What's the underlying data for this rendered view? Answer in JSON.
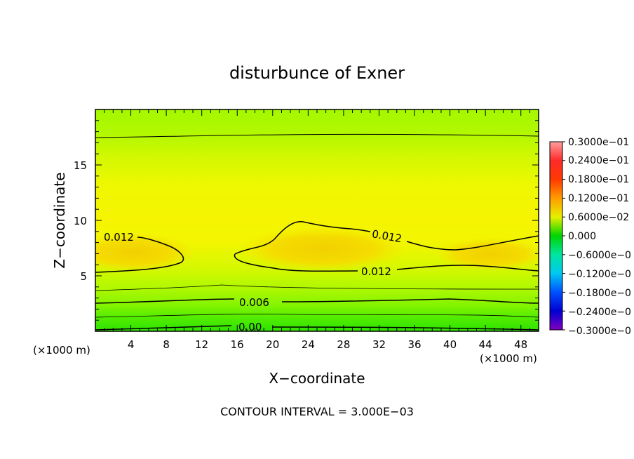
{
  "chart_data": {
    "type": "heatmap",
    "title": "disturbunce of Exner",
    "xlabel": "X−coordinate",
    "ylabel": "Z−coordinate",
    "x_unit_left": "(×1000 m)",
    "x_unit_right": "(×1000 m)",
    "footer": "CONTOUR INTERVAL = 3.000E−03",
    "xlim": [
      0,
      50
    ],
    "ylim": [
      0,
      20
    ],
    "x_ticks": [
      "4",
      "8",
      "12",
      "16",
      "20",
      "24",
      "28",
      "32",
      "36",
      "40",
      "44",
      "48"
    ],
    "y_ticks": [
      "5",
      "10",
      "15"
    ],
    "contour_labels": [
      "0.012",
      "0.012",
      "0.012",
      "0.006",
      "0.00"
    ],
    "colorbar_labels": [
      "0.3000e−01",
      "0.2400e−01",
      "0.1800e−01",
      "0.1200e−01",
      "0.6000e−02",
      "0.000",
      "−0.6000e−0",
      "−0.1200e−0",
      "−0.1800e−0",
      "−0.2400e−0",
      "−0.3000e−0"
    ],
    "colorbar_range": [
      -0.03,
      0.03
    ],
    "contour_interval": 0.003,
    "colors": {
      "bright_green": "#2ee600",
      "green": "#66f000",
      "light_green": "#a0f800",
      "yellow_green": "#d2f800",
      "yellow": "#f6f600",
      "yellow_orange": "#f6e200",
      "pale_orange": "#f2d200"
    }
  }
}
